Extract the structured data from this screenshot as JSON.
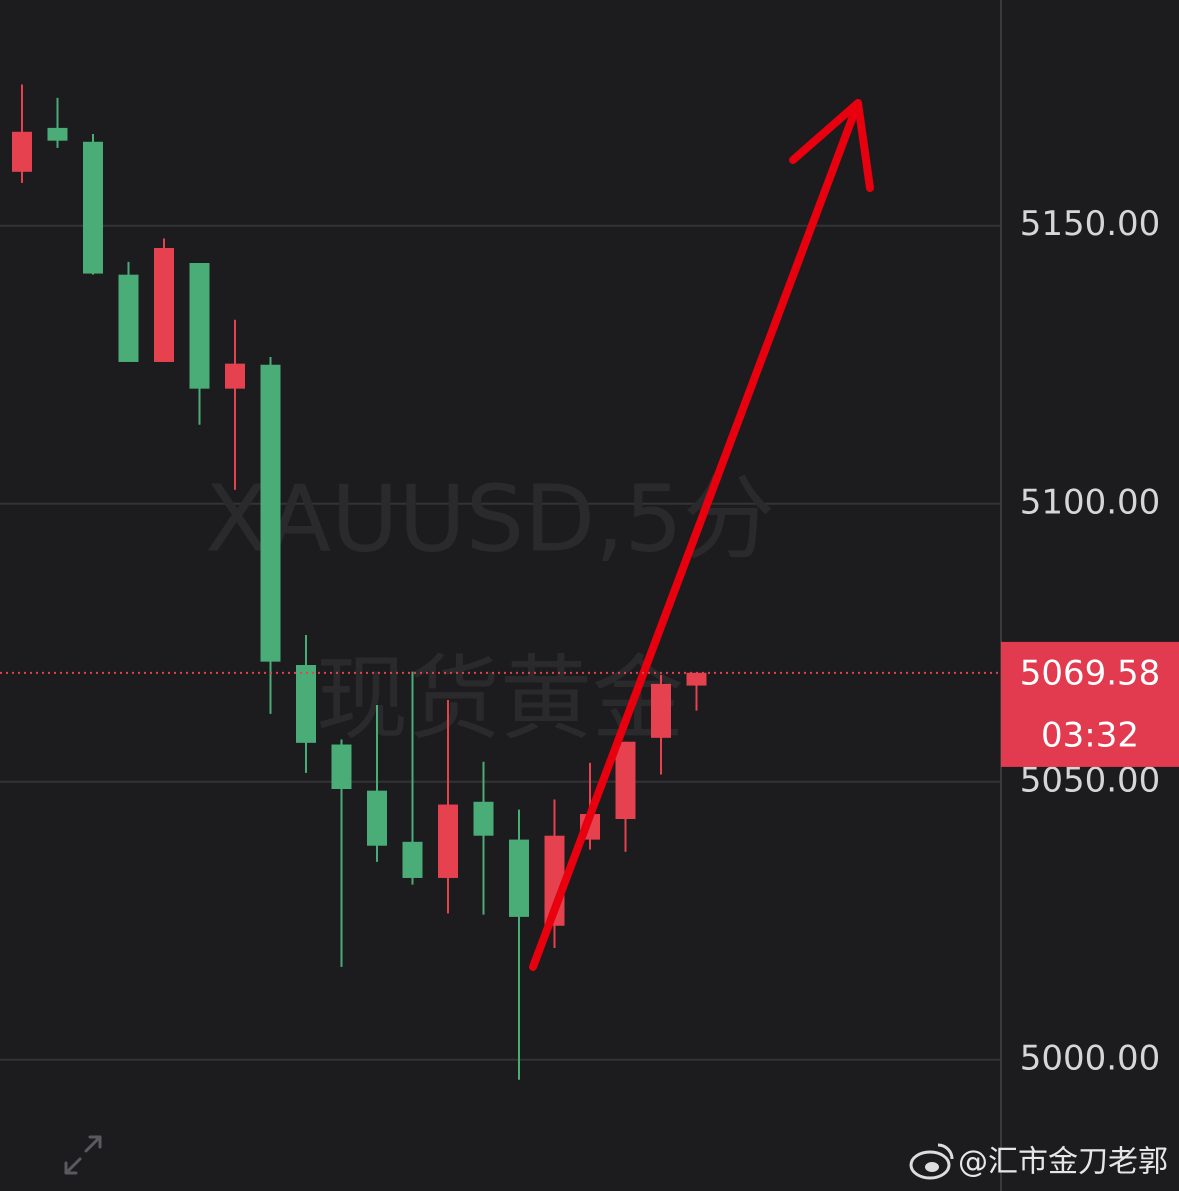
{
  "chart_data": {
    "type": "candlestick",
    "watermark_symbol": "XAUUSD,5分",
    "watermark_name": "现货黄金",
    "open": [
      5159.7,
      5167.6,
      5165.1,
      5141.2,
      5125.5,
      5143.3,
      5120.7,
      5125.0,
      5071.0,
      5056.7,
      5048.4,
      5039.2,
      5032.7,
      5046.4,
      5039.6,
      5024.1,
      5039.6,
      5043.3,
      5057.9,
      5067.3
    ],
    "high": [
      5175.4,
      5173.0,
      5166.5,
      5143.5,
      5147.7,
      5143.3,
      5133.1,
      5126.4,
      5076.4,
      5057.6,
      5063.8,
      5069.8,
      5064.7,
      5053.6,
      5045.0,
      5046.8,
      5053.4,
      5057.2,
      5069.2,
      5069.6
    ],
    "low": [
      5157.7,
      5164.0,
      5141.2,
      5125.5,
      5125.5,
      5114.2,
      5102.5,
      5062.2,
      5051.6,
      5016.7,
      5035.6,
      5031.5,
      5026.3,
      5026.1,
      4996.4,
      5020.1,
      5037.8,
      5037.4,
      5051.3,
      5062.8
    ],
    "close": [
      5166.9,
      5165.3,
      5141.4,
      5125.5,
      5146.0,
      5120.7,
      5125.2,
      5071.6,
      5057.0,
      5048.7,
      5038.5,
      5032.7,
      5045.9,
      5040.3,
      5025.7,
      5040.3,
      5044.2,
      5057.2,
      5067.6,
      5069.6
    ],
    "up_color": "#e5414f",
    "down_color": "#4aad78",
    "ylim": [
      4976.4,
      5190.6
    ],
    "yticks": [
      {
        "value": 5000,
        "label": "5000.00"
      },
      {
        "value": 5050,
        "label": "5050.00"
      },
      {
        "value": 5100,
        "label": "5100.00"
      },
      {
        "value": 5150,
        "label": "5150.00"
      }
    ],
    "grid": true,
    "last_price": 5069.58,
    "countdown": "03:32"
  },
  "footer": {
    "credit": "@汇市金刀老郭"
  }
}
